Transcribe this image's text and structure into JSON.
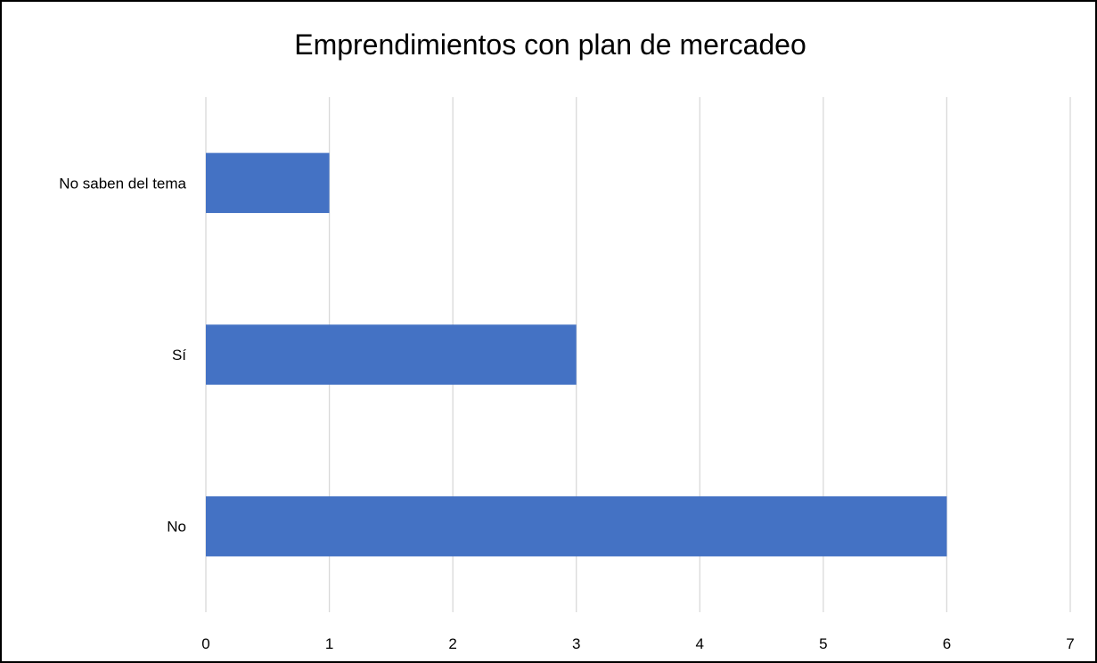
{
  "chart_data": {
    "type": "bar",
    "orientation": "horizontal",
    "title": "Emprendimientos con plan de mercadeo",
    "categories": [
      "No saben del tema",
      "Sí",
      "No"
    ],
    "values": [
      1,
      3,
      6
    ],
    "xlim": [
      0,
      7
    ],
    "x_ticks": [
      "0",
      "1",
      "2",
      "3",
      "4",
      "5",
      "6",
      "7"
    ],
    "grid": "vertical",
    "legend": "none",
    "bar_color": "#4472C4",
    "grid_color": "#D9D9D9"
  }
}
